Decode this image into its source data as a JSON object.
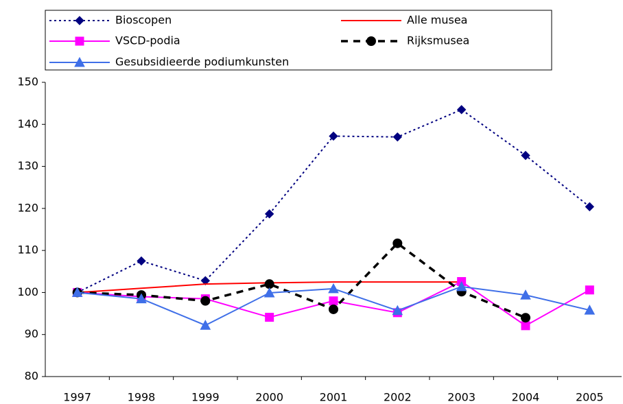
{
  "chart_data": {
    "type": "line",
    "categories": [
      "1997",
      "1998",
      "1999",
      "2000",
      "2001",
      "2002",
      "2003",
      "2004",
      "2005"
    ],
    "ylim": [
      80,
      150
    ],
    "yticks": [
      80,
      90,
      100,
      110,
      120,
      130,
      140,
      150
    ],
    "grid": false,
    "series": [
      {
        "name": "Bioscopen",
        "color": "#000080",
        "line_style": "dotted",
        "marker": "diamond",
        "values": [
          100,
          107.5,
          102.8,
          118.7,
          137.2,
          137,
          143.5,
          132.6,
          120.4
        ]
      },
      {
        "name": "Alle musea",
        "color": "#ff0000",
        "line_style": "solid",
        "marker": "none",
        "values": [
          100,
          101,
          102,
          102.3,
          102.5,
          102.5,
          102.5,
          null,
          null
        ]
      },
      {
        "name": "VSCD-podia",
        "color": "#ff00ff",
        "line_style": "solid",
        "marker": "square",
        "values": [
          100,
          99,
          98.5,
          94.1,
          98,
          95.2,
          102.6,
          92.1,
          100.6
        ]
      },
      {
        "name": "Rijksmusea",
        "color": "#000000",
        "line_style": "dashed",
        "marker": "circle",
        "values": [
          100,
          99.4,
          98,
          102,
          96,
          111.7,
          100.2,
          94,
          null
        ]
      },
      {
        "name": "Gesubsidieerde podiumkunsten",
        "color": "#3f6fe8",
        "line_style": "solid",
        "marker": "triangle",
        "values": [
          100,
          98.5,
          92.2,
          99.9,
          100.9,
          95.7,
          101.4,
          99.4,
          95.8
        ]
      }
    ]
  }
}
